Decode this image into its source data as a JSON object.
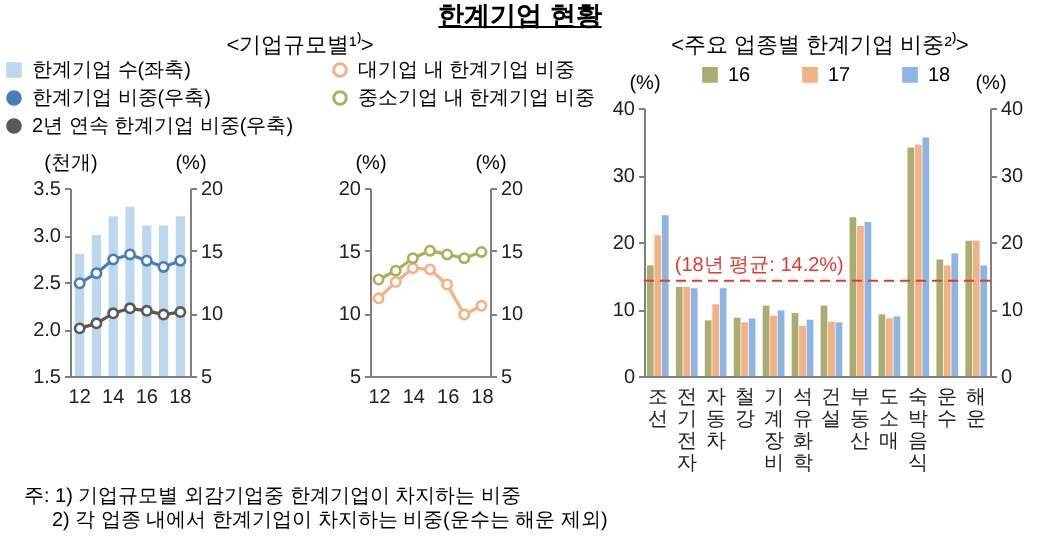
{
  "chart_data": [
    {
      "type": "bar",
      "title": "<기업규모별¹⁾>",
      "categories": [
        "12",
        null,
        "14",
        null,
        "16",
        null,
        "18"
      ],
      "ylabel": "(천개)",
      "y2label": "(%)",
      "ylim": [
        1.5,
        3.5
      ],
      "yticks": [
        1.5,
        {
          "value": 2,
          "label": "2.0"
        },
        2.5,
        {
          "value": 3,
          "label": "3.0"
        },
        3.5
      ],
      "y2lim": [
        5,
        20
      ],
      "y2ticks": [
        5,
        10,
        15,
        20
      ],
      "legend": "top",
      "marker": "circle",
      "series": [
        {
          "name": "한계기업 수(좌축)",
          "color": "#bdd7ee",
          "values": [
            2.8,
            3.0,
            3.2,
            3.3,
            3.1,
            3.1,
            3.2
          ]
        },
        {
          "name": "한계기업 비중(우축)",
          "type": "line",
          "axis": "y2",
          "color": "#4a7ebb",
          "values": [
            12.4,
            13.2,
            14.3,
            14.7,
            14.2,
            13.7,
            14.2
          ]
        },
        {
          "name": "2년 연속 한계기업 비중(우축)",
          "type": "line",
          "axis": "y2",
          "color": "#595959",
          "values": [
            8.8,
            9.2,
            10.0,
            10.4,
            10.2,
            9.9,
            10.1
          ]
        }
      ],
      "annotations": [
        "한계기업 현황",
        "주: 1) 기업규모별 외감기업중 한계기업이 차지하는 비중",
        "2) 각 업종 내에서 한계기업이 차지하는 비중(운수는 해운 제외)"
      ]
    },
    {
      "type": "line",
      "categories": [
        "12",
        null,
        "14",
        null,
        "16",
        null,
        "18"
      ],
      "ylabel": "(%)",
      "y2label": "(%)",
      "ylim": [
        5,
        20
      ],
      "yticks": [
        5,
        10,
        15,
        20
      ],
      "y2lim": [
        5,
        20
      ],
      "y2ticks": [
        5,
        10,
        15,
        20
      ],
      "legend": "top",
      "marker": "circle",
      "series": [
        {
          "name": "대기업 내 한계기업 비중",
          "color": "#f4b183",
          "values": [
            11.2,
            12.5,
            13.6,
            13.5,
            12.3,
            9.9,
            10.6
          ]
        },
        {
          "name": "중소기업 내 한계기업 비중",
          "color": "#a9b15a",
          "values": [
            12.7,
            13.4,
            14.4,
            15.0,
            14.7,
            14.4,
            14.9
          ]
        }
      ]
    },
    {
      "type": "bar",
      "title": "<주요 업종별 한계기업 비중²⁾>",
      "categories": [
        "조선",
        "전기전자",
        "자동차",
        "철강",
        "기계장비",
        "석유화학",
        "건설",
        "부동산",
        "도소매",
        "숙박음식",
        "운수",
        "해운"
      ],
      "ylabel": "(%)",
      "y2label": "(%)",
      "ylim": [
        0,
        40
      ],
      "yticks": [
        0,
        10,
        20,
        30,
        40
      ],
      "y2lim": [
        0,
        40
      ],
      "y2ticks": [
        0,
        10,
        20,
        30,
        40
      ],
      "legend": "top",
      "series": [
        {
          "name": "16",
          "color": "#a9ad72",
          "values": [
            16.5,
            13.3,
            8.3,
            8.7,
            10.5,
            9.4,
            10.5,
            23.7,
            9.2,
            34.1,
            17.4,
            20.2
          ]
        },
        {
          "name": "17",
          "color": "#f4b183",
          "values": [
            21,
            13.3,
            10.7,
            8.0,
            9.0,
            7.5,
            8.1,
            22.4,
            8.6,
            34.5,
            16.5,
            20.2
          ]
        },
        {
          "name": "18",
          "color": "#8db4e2",
          "values": [
            24,
            13.1,
            13.1,
            8.6,
            9.8,
            8.4,
            8.0,
            23.0,
            8.9,
            35.6,
            18.3,
            16.5
          ]
        }
      ],
      "ref_lines": [
        {
          "axis": "y",
          "value": 14.2,
          "label": "(18년 평균: 14.2%)",
          "color": "#e03c31",
          "line_style": "dashed"
        }
      ]
    }
  ]
}
